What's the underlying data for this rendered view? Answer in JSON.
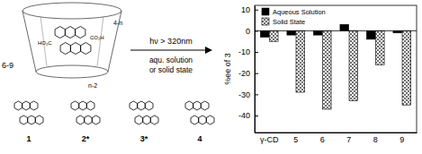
{
  "chart_data": {
    "type": "bar",
    "ylabel": "%ee of 3",
    "categories": [
      "γ-CD",
      "5",
      "6",
      "7",
      "8",
      "9"
    ],
    "series": [
      {
        "name": "Aqueous Solution",
        "color": "#000000",
        "values": [
          -3,
          -2,
          -2,
          3,
          -4,
          -1
        ]
      },
      {
        "name": "Solid State",
        "color": "#333333",
        "values": [
          -5,
          -29,
          -37,
          -33,
          -16,
          -35
        ]
      }
    ],
    "ylim": [
      -48,
      12
    ],
    "yticks": [
      10,
      0,
      -10,
      -20,
      -30,
      -40
    ],
    "grid": false,
    "legend": "upper left"
  },
  "scheme": {
    "host_label": "6-9",
    "ring_labels": [
      "4-n",
      "n-2"
    ],
    "group_labels": [
      "HO₂C",
      "CO₂H"
    ],
    "arrow_above": "hν > 320nm",
    "arrow_below": [
      "aqu. solution",
      "or solid state"
    ],
    "compounds": [
      "1",
      "2*",
      "3*",
      "4"
    ]
  }
}
